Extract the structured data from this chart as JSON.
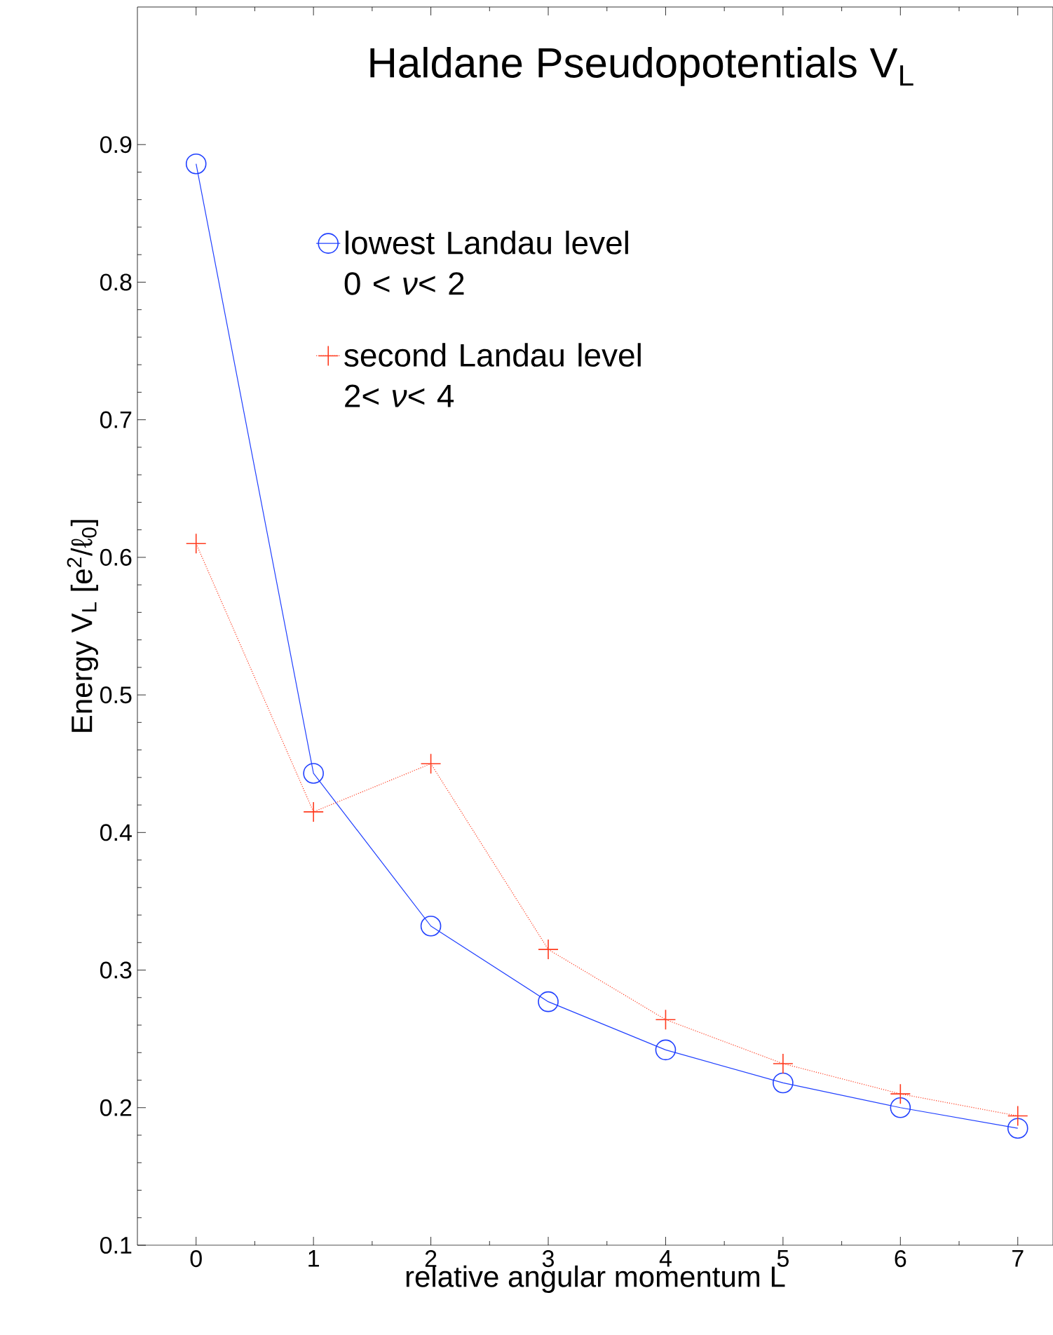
{
  "chart_data": {
    "type": "line",
    "title": "Haldane Pseudopotentials V$_{L}$",
    "xlabel": "relative angular momentum L",
    "ylabel": "Energy   V$_{L}$  [e$^{2}$/ℓ$_{0}$]",
    "x": [
      0,
      1,
      2,
      3,
      4,
      5,
      6,
      7
    ],
    "series": [
      {
        "name": "lowest Landau level 0 < *ν*< 2",
        "color": "#2040ff",
        "marker": "circle",
        "line_style": "solid",
        "values": [
          0.886,
          0.443,
          0.332,
          0.277,
          0.242,
          0.218,
          0.2,
          0.185
        ]
      },
      {
        "name": "second Landau level 2< *ν*< 4",
        "color": "#ff3b1f",
        "marker": "cross",
        "line_style": "dotted",
        "values": [
          0.61,
          0.415,
          0.45,
          0.315,
          0.264,
          0.232,
          0.21,
          0.194
        ]
      }
    ],
    "xlim": [
      -0.5,
      7.3
    ],
    "ylim": [
      0.1,
      1.0
    ],
    "xticks": [
      0,
      1,
      2,
      3,
      4,
      5,
      6,
      7
    ],
    "yticks": [
      0.1,
      0.2,
      0.3,
      0.4,
      0.5,
      0.6,
      0.7,
      0.8,
      0.9
    ],
    "grid": false,
    "legend": "top"
  }
}
